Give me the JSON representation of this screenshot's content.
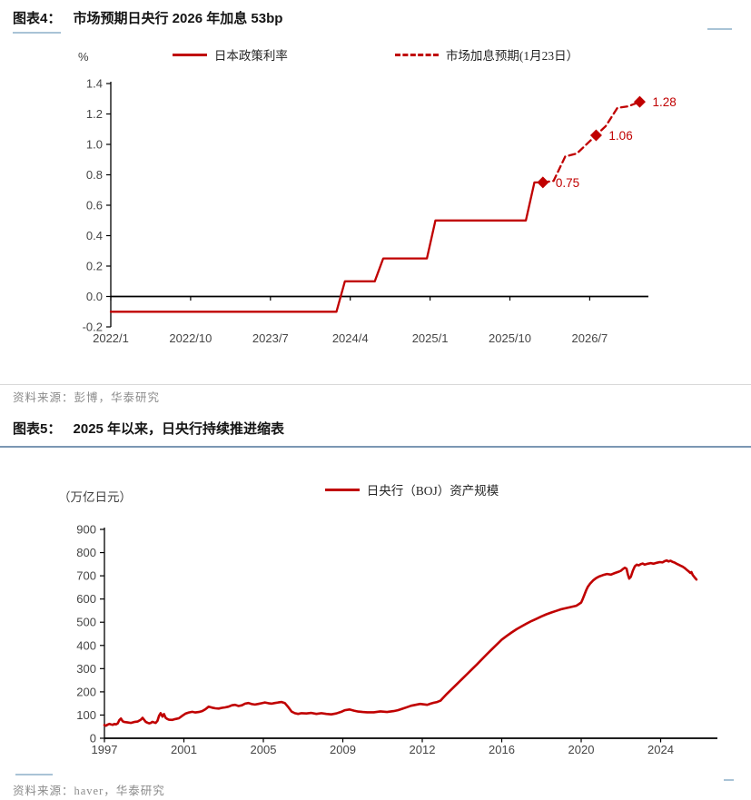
{
  "colors": {
    "line_red": "#c00000",
    "axis_black": "#000000",
    "tick_gray": "#454545",
    "source_gray": "#8a8a8a",
    "rule_blue_light": "#a9c3d6",
    "rule_blue": "#7b97b3",
    "divider_gray": "#d9d9d9"
  },
  "figure4": {
    "label": "图表4：",
    "title": "市场预期日央行 2026 年加息 53bp",
    "unit": "%",
    "legend": [
      {
        "label": "日本政策利率",
        "style": "solid"
      },
      {
        "label": "市场加息预期(1月23日）",
        "style": "dashed"
      }
    ],
    "source": "资料来源：彭博，华泰研究"
  },
  "figure5": {
    "label": "图表5：",
    "title": "2025 年以来，日央行持续推进缩表",
    "unit": "（万亿日元）",
    "legend": [
      {
        "label": "日央行（BOJ）资产规模",
        "style": "solid"
      }
    ],
    "source": "资料来源：haver，华泰研究"
  },
  "chart_data": [
    {
      "type": "line",
      "name": "boj-rate-hike-expectations",
      "title": "市场预期日央行 2026 年加息 53bp",
      "ylabel": "%",
      "ylim": [
        -0.2,
        1.4
      ],
      "xaxis_at": 0,
      "grid": false,
      "legend_position": "top-center",
      "yticks": [
        {
          "v": -0.2,
          "label": "-0.2"
        },
        {
          "v": 0.0,
          "label": "0.0"
        },
        {
          "v": 0.2,
          "label": "0.2"
        },
        {
          "v": 0.4,
          "label": "0.4"
        },
        {
          "v": 0.6,
          "label": "0.6"
        },
        {
          "v": 0.8,
          "label": "0.8"
        },
        {
          "v": 1.0,
          "label": "1.0"
        },
        {
          "v": 1.2,
          "label": "1.2"
        },
        {
          "v": 1.4,
          "label": "1.4"
        }
      ],
      "xticks": [
        {
          "v": 2022.0,
          "label": "2022/1"
        },
        {
          "v": 2022.75,
          "label": "2022/10"
        },
        {
          "v": 2023.5,
          "label": "2023/7"
        },
        {
          "v": 2024.25,
          "label": "2024/4"
        },
        {
          "v": 2025.0,
          "label": "2025/1"
        },
        {
          "v": 2025.75,
          "label": "2025/10"
        },
        {
          "v": 2026.5,
          "label": "2026/7"
        }
      ],
      "series": [
        {
          "name": "日本政策利率",
          "style": "solid",
          "color": "#c00000",
          "points": [
            [
              2022.0,
              -0.1
            ],
            [
              2024.12,
              -0.1
            ],
            [
              2024.2,
              0.1
            ],
            [
              2024.48,
              0.1
            ],
            [
              2024.56,
              0.25
            ],
            [
              2024.97,
              0.25
            ],
            [
              2025.05,
              0.5
            ],
            [
              2025.9,
              0.5
            ],
            [
              2025.98,
              0.75
            ],
            [
              2026.06,
              0.75
            ]
          ]
        },
        {
          "name": "市场加息预期(1月23日）",
          "style": "dashed",
          "color": "#c00000",
          "points": [
            [
              2026.06,
              0.75
            ],
            [
              2026.16,
              0.76
            ],
            [
              2026.27,
              0.92
            ],
            [
              2026.38,
              0.94
            ],
            [
              2026.5,
              1.02
            ],
            [
              2026.56,
              1.06
            ],
            [
              2026.65,
              1.12
            ],
            [
              2026.76,
              1.24
            ],
            [
              2026.86,
              1.25
            ],
            [
              2026.97,
              1.28
            ]
          ],
          "markers": [
            [
              2026.06,
              0.75,
              "0.75"
            ],
            [
              2026.56,
              1.06,
              "1.06"
            ],
            [
              2026.97,
              1.28,
              "1.28"
            ]
          ]
        }
      ]
    },
    {
      "type": "line",
      "name": "boj-balance-sheet",
      "title": "2025 年以来，日央行持续推进缩表",
      "ylabel": "（万亿日元）",
      "ylim": [
        0,
        900
      ],
      "xaxis_at": 0,
      "grid": false,
      "legend_position": "top-center",
      "yticks": [
        {
          "v": 0,
          "label": "0"
        },
        {
          "v": 100,
          "label": "100"
        },
        {
          "v": 200,
          "label": "200"
        },
        {
          "v": 300,
          "label": "300"
        },
        {
          "v": 400,
          "label": "400"
        },
        {
          "v": 500,
          "label": "500"
        },
        {
          "v": 600,
          "label": "600"
        },
        {
          "v": 700,
          "label": "700"
        },
        {
          "v": 800,
          "label": "800"
        },
        {
          "v": 900,
          "label": "900"
        }
      ],
      "xticks": [
        {
          "v": 1997,
          "label": "1997"
        },
        {
          "v": 2001,
          "label": "2001"
        },
        {
          "v": 2005,
          "label": "2005"
        },
        {
          "v": 2009,
          "label": "2009"
        },
        {
          "v": 2012,
          "label": "2012"
        },
        {
          "v": 2016,
          "label": "2016"
        },
        {
          "v": 2020,
          "label": "2020"
        },
        {
          "v": 2024,
          "label": "2024"
        }
      ],
      "series": [
        {
          "name": "日央行（BOJ）资产规模",
          "style": "solid",
          "color": "#c00000",
          "points": [
            [
              1997.0,
              57
            ],
            [
              1997.08,
              54
            ],
            [
              1997.17,
              59
            ],
            [
              1997.25,
              62
            ],
            [
              1997.33,
              60
            ],
            [
              1997.42,
              58
            ],
            [
              1997.5,
              62
            ],
            [
              1997.58,
              60
            ],
            [
              1997.67,
              64
            ],
            [
              1997.75,
              78
            ],
            [
              1997.83,
              85
            ],
            [
              1997.92,
              73
            ],
            [
              1998.0,
              70
            ],
            [
              1998.17,
              68
            ],
            [
              1998.33,
              66
            ],
            [
              1998.5,
              70
            ],
            [
              1998.67,
              72
            ],
            [
              1998.83,
              80
            ],
            [
              1998.92,
              88
            ],
            [
              1999.0,
              79
            ],
            [
              1999.08,
              71
            ],
            [
              1999.17,
              67
            ],
            [
              1999.25,
              64
            ],
            [
              1999.33,
              66
            ],
            [
              1999.42,
              71
            ],
            [
              1999.5,
              68
            ],
            [
              1999.58,
              66
            ],
            [
              1999.67,
              75
            ],
            [
              1999.75,
              97
            ],
            [
              1999.83,
              108
            ],
            [
              1999.92,
              93
            ],
            [
              2000.0,
              104
            ],
            [
              2000.08,
              88
            ],
            [
              2000.17,
              83
            ],
            [
              2000.25,
              80
            ],
            [
              2000.42,
              79
            ],
            [
              2000.58,
              83
            ],
            [
              2000.75,
              86
            ],
            [
              2000.92,
              97
            ],
            [
              2001.08,
              106
            ],
            [
              2001.25,
              111
            ],
            [
              2001.42,
              114
            ],
            [
              2001.58,
              111
            ],
            [
              2001.75,
              113
            ],
            [
              2001.92,
              117
            ],
            [
              2002.08,
              125
            ],
            [
              2002.25,
              136
            ],
            [
              2002.42,
              132
            ],
            [
              2002.58,
              129
            ],
            [
              2002.75,
              128
            ],
            [
              2002.92,
              131
            ],
            [
              2003.08,
              133
            ],
            [
              2003.25,
              136
            ],
            [
              2003.42,
              142
            ],
            [
              2003.58,
              144
            ],
            [
              2003.75,
              139
            ],
            [
              2003.92,
              142
            ],
            [
              2004.08,
              149
            ],
            [
              2004.25,
              152
            ],
            [
              2004.42,
              147
            ],
            [
              2004.58,
              145
            ],
            [
              2004.75,
              148
            ],
            [
              2004.92,
              151
            ],
            [
              2005.08,
              154
            ],
            [
              2005.25,
              151
            ],
            [
              2005.42,
              149
            ],
            [
              2005.58,
              152
            ],
            [
              2005.75,
              154
            ],
            [
              2005.92,
              156
            ],
            [
              2006.08,
              152
            ],
            [
              2006.25,
              135
            ],
            [
              2006.42,
              115
            ],
            [
              2006.58,
              108
            ],
            [
              2006.75,
              105
            ],
            [
              2006.92,
              108
            ],
            [
              2007.17,
              107
            ],
            [
              2007.42,
              109
            ],
            [
              2007.67,
              105
            ],
            [
              2007.92,
              108
            ],
            [
              2008.17,
              105
            ],
            [
              2008.42,
              103
            ],
            [
              2008.67,
              107
            ],
            [
              2008.92,
              114
            ],
            [
              2009.08,
              121
            ],
            [
              2009.25,
              124
            ],
            [
              2009.42,
              119
            ],
            [
              2009.58,
              115
            ],
            [
              2009.75,
              113
            ],
            [
              2009.92,
              112
            ],
            [
              2010.17,
              112
            ],
            [
              2010.42,
              116
            ],
            [
              2010.67,
              113
            ],
            [
              2010.92,
              117
            ],
            [
              2011.08,
              121
            ],
            [
              2011.25,
              127
            ],
            [
              2011.42,
              134
            ],
            [
              2011.58,
              140
            ],
            [
              2011.75,
              144
            ],
            [
              2011.92,
              148
            ],
            [
              2012.08,
              146
            ],
            [
              2012.25,
              144
            ],
            [
              2012.42,
              149
            ],
            [
              2012.58,
              153
            ],
            [
              2012.75,
              156
            ],
            [
              2012.92,
              162
            ],
            [
              2013.0,
              170
            ],
            [
              2013.25,
              192
            ],
            [
              2013.5,
              213
            ],
            [
              2013.75,
              234
            ],
            [
              2014.0,
              255
            ],
            [
              2014.25,
              276
            ],
            [
              2014.5,
              297
            ],
            [
              2014.75,
              318
            ],
            [
              2015.0,
              340
            ],
            [
              2015.25,
              362
            ],
            [
              2015.5,
              383
            ],
            [
              2015.75,
              404
            ],
            [
              2016.0,
              425
            ],
            [
              2016.25,
              441
            ],
            [
              2016.5,
              456
            ],
            [
              2016.75,
              470
            ],
            [
              2017.0,
              482
            ],
            [
              2017.25,
              494
            ],
            [
              2017.5,
              505
            ],
            [
              2017.75,
              515
            ],
            [
              2018.0,
              525
            ],
            [
              2018.25,
              534
            ],
            [
              2018.5,
              542
            ],
            [
              2018.75,
              549
            ],
            [
              2019.0,
              556
            ],
            [
              2019.25,
              561
            ],
            [
              2019.5,
              566
            ],
            [
              2019.75,
              571
            ],
            [
              2019.85,
              576
            ],
            [
              2020.0,
              585
            ],
            [
              2020.08,
              600
            ],
            [
              2020.17,
              620
            ],
            [
              2020.25,
              638
            ],
            [
              2020.33,
              652
            ],
            [
              2020.45,
              666
            ],
            [
              2020.6,
              680
            ],
            [
              2020.75,
              690
            ],
            [
              2020.9,
              697
            ],
            [
              2021.1,
              703
            ],
            [
              2021.3,
              708
            ],
            [
              2021.5,
              705
            ],
            [
              2021.7,
              712
            ],
            [
              2021.9,
              718
            ],
            [
              2022.0,
              722
            ],
            [
              2022.1,
              729
            ],
            [
              2022.2,
              735
            ],
            [
              2022.28,
              731
            ],
            [
              2022.35,
              706
            ],
            [
              2022.42,
              688
            ],
            [
              2022.5,
              696
            ],
            [
              2022.6,
              722
            ],
            [
              2022.7,
              741
            ],
            [
              2022.8,
              748
            ],
            [
              2022.9,
              745
            ],
            [
              2023.0,
              750
            ],
            [
              2023.1,
              753
            ],
            [
              2023.2,
              748
            ],
            [
              2023.35,
              752
            ],
            [
              2023.5,
              755
            ],
            [
              2023.65,
              752
            ],
            [
              2023.8,
              756
            ],
            [
              2023.95,
              759
            ],
            [
              2024.1,
              758
            ],
            [
              2024.2,
              763
            ],
            [
              2024.3,
              766
            ],
            [
              2024.4,
              762
            ],
            [
              2024.5,
              765
            ],
            [
              2024.6,
              760
            ],
            [
              2024.7,
              757
            ],
            [
              2024.8,
              752
            ],
            [
              2024.9,
              748
            ],
            [
              2025.0,
              744
            ],
            [
              2025.1,
              740
            ],
            [
              2025.2,
              734
            ],
            [
              2025.3,
              727
            ],
            [
              2025.4,
              720
            ],
            [
              2025.5,
              712
            ],
            [
              2025.55,
              716
            ],
            [
              2025.62,
              703
            ],
            [
              2025.7,
              694
            ],
            [
              2025.75,
              689
            ],
            [
              2025.8,
              684
            ]
          ]
        }
      ]
    }
  ]
}
